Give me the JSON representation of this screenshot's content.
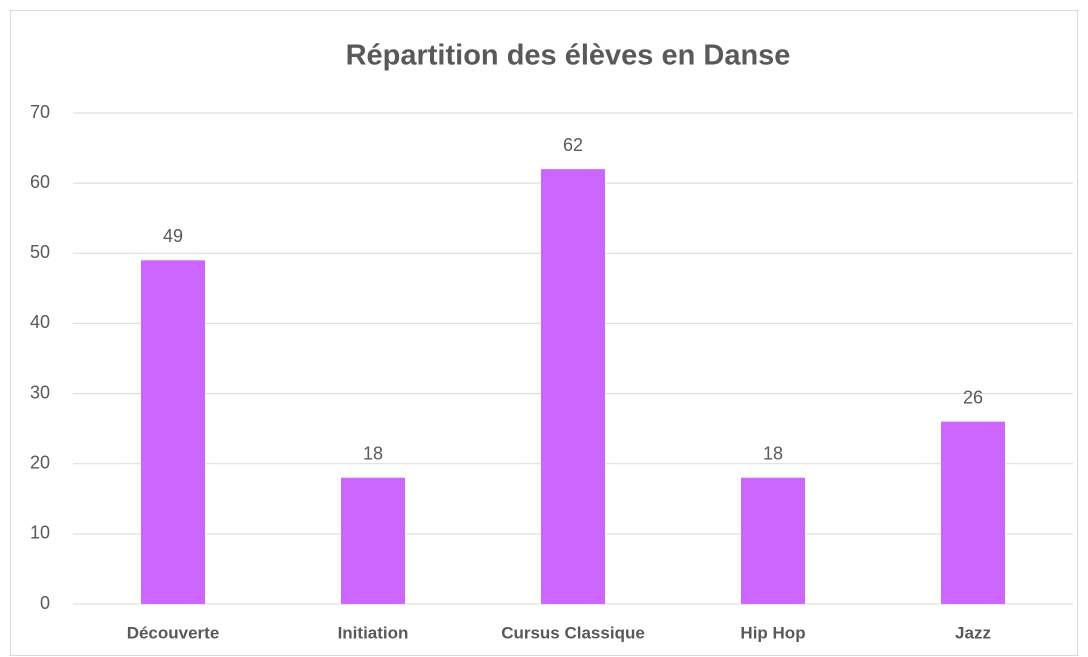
{
  "chart_data": {
    "type": "bar",
    "title": "Répartition des élèves en Danse",
    "categories": [
      "Découverte",
      "Initiation",
      "Cursus Classique",
      "Hip Hop",
      "Jazz"
    ],
    "values": [
      49,
      18,
      62,
      18,
      26
    ],
    "color": "#cc66ff",
    "ylim": [
      0,
      70
    ],
    "yticks": [
      0,
      10,
      20,
      30,
      40,
      50,
      60,
      70
    ],
    "grid": true,
    "data_labels": true
  }
}
